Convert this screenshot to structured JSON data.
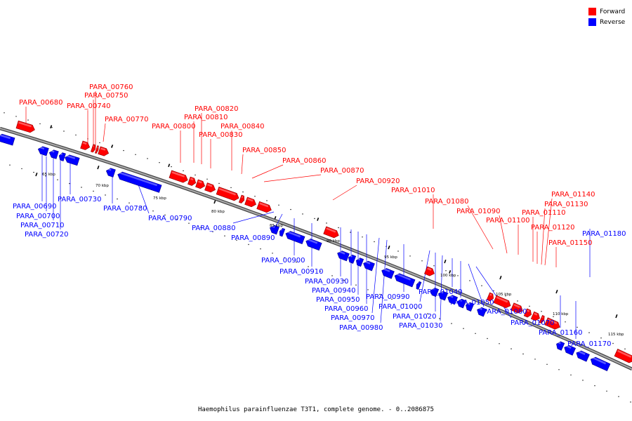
{
  "colors": {
    "forward": "#ff0000",
    "reverse": "#0000ff",
    "backbone": "#777777"
  },
  "legend": [
    {
      "label": "Forward",
      "color": "#ff0000"
    },
    {
      "label": "Reverse",
      "color": "#0000ff"
    }
  ],
  "caption": "Haemophilus parainfluenzae T3T1, complete genome. - 0..2086875",
  "scale_ticks": [
    "65 kbp",
    "70 kbp",
    "75 kbp",
    "80 kbp",
    "85 kbp",
    "90 kbp",
    "95 kbp",
    "100 kbp",
    "105 kbp",
    "110 kbp",
    "115 kbp"
  ],
  "forward_genes": [
    "PARA_00680",
    "PARA_00740",
    "PARA_00750",
    "PARA_00760",
    "PARA_00770",
    "PARA_00800",
    "PARA_00810",
    "PARA_00820",
    "PARA_00830",
    "PARA_00840",
    "PARA_00850",
    "PARA_00860",
    "PARA_00870",
    "PARA_00920",
    "PARA_01010",
    "PARA_01080",
    "PARA_01090",
    "PARA_01100",
    "PARA_01110",
    "PARA_01120",
    "PARA_01130",
    "PARA_01140",
    "PARA_01150"
  ],
  "reverse_genes": [
    "PARA_00690",
    "PARA_00700",
    "PARA_00710",
    "PARA_00720",
    "PARA_00730",
    "PARA_00780",
    "PARA_00790",
    "PARA_00880",
    "PARA_00890",
    "PARA_00900",
    "PARA_00910",
    "PARA_00930",
    "PARA_00940",
    "PARA_00950",
    "PARA_00960",
    "PARA_00970",
    "PARA_00980",
    "PARA_00990",
    "PARA_01000",
    "PARA_01020",
    "PARA_01030",
    "PARA_01040",
    "PARA_01050",
    "PARA_01060",
    "PARA_01070",
    "PARA_01160",
    "PARA_01170",
    "PARA_01180"
  ]
}
